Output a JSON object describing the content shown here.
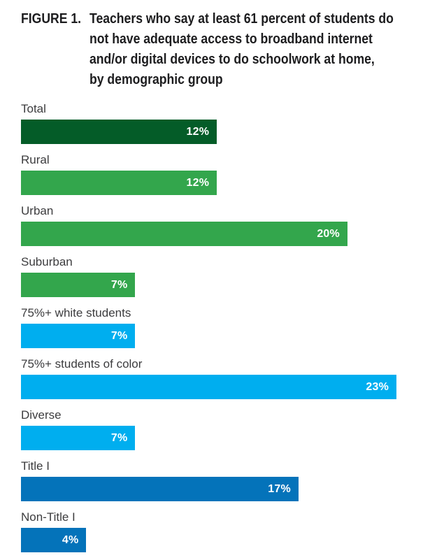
{
  "figure": {
    "title_prefix": "FIGURE 1.",
    "title_lines": [
      "Teachers who say at least 61 percent of students do",
      "not have adequate access to broadband internet",
      "and/or digital devices to do schoolwork at home,",
      "by demographic group"
    ]
  },
  "chart_data": {
    "type": "bar",
    "orientation": "horizontal",
    "title": "FIGURE 1. Teachers who say at least 61 percent of students do not have adequate access to broadband internet and/or digital devices to do schoolwork at home, by demographic group",
    "xlabel": "",
    "ylabel": "",
    "grid": false,
    "legend": false,
    "value_label_position": "inside-right",
    "xmax": 23,
    "categories": [
      "Total",
      "Rural",
      "Urban",
      "Suburban",
      "75%+ white students",
      "75%+ students of color",
      "Diverse",
      "Title I",
      "Non-Title I"
    ],
    "values": [
      12,
      12,
      20,
      7,
      7,
      23,
      7,
      17,
      4
    ],
    "value_labels": [
      "12%",
      "12%",
      "20%",
      "7%",
      "7%",
      "23%",
      "7%",
      "17%",
      "4%"
    ],
    "colors": [
      "#045C28",
      "#33A64C",
      "#33A64C",
      "#33A64C",
      "#00AEEF",
      "#00AEEF",
      "#00AEEF",
      "#0473BA",
      "#0473BA"
    ],
    "color_groups": {
      "total": "#045C28",
      "school_locale": "#33A64C",
      "student_demographics": "#00AEEF",
      "title_i_status": "#0473BA"
    }
  }
}
